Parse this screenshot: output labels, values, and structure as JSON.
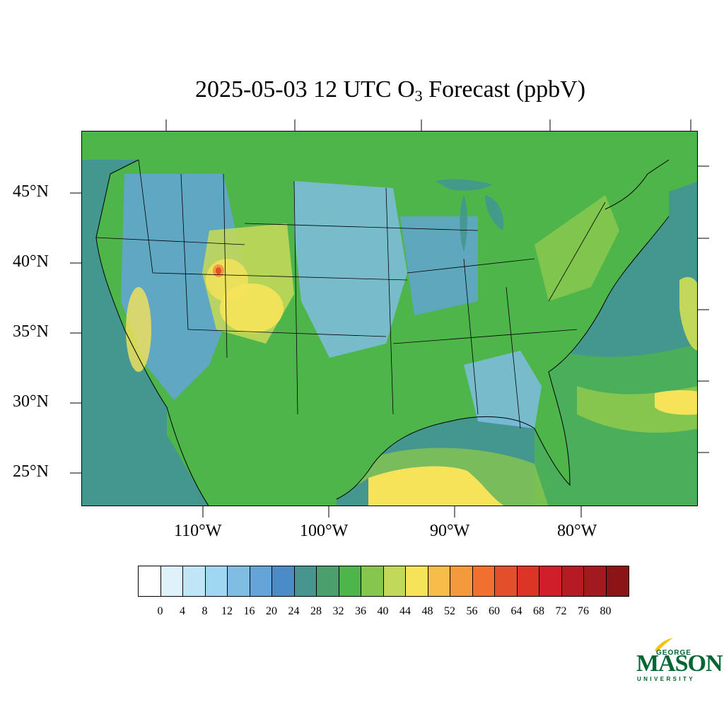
{
  "title": {
    "prefix": "2025-05-03 12 UTC O",
    "subscript": "3",
    "suffix": " Forecast (ppbV)"
  },
  "map": {
    "lat_labels": [
      "45°N",
      "40°N",
      "35°N",
      "30°N",
      "25°N"
    ],
    "lon_labels": [
      "110°W",
      "100°W",
      "90°W",
      "80°W"
    ],
    "land_color": "#4dad47",
    "ocean_color": "#44978f"
  },
  "colorbar": {
    "labels": [
      "0",
      "4",
      "8",
      "12",
      "16",
      "20",
      "24",
      "28",
      "32",
      "36",
      "40",
      "44",
      "48",
      "52",
      "56",
      "60",
      "64",
      "68",
      "72",
      "76",
      "80"
    ],
    "colors": [
      "#ffffff",
      "#dff1fb",
      "#bfe5f7",
      "#9fd7f3",
      "#80bde3",
      "#64a4d8",
      "#4a8cc7",
      "#47958f",
      "#49a06c",
      "#4db54a",
      "#86c64f",
      "#c2d85a",
      "#f6e35a",
      "#f7bd4a",
      "#f59a3c",
      "#f1702f",
      "#e24f2a",
      "#dc3526",
      "#d01f2a",
      "#b61a24",
      "#a01a20",
      "#8c1417"
    ]
  },
  "logo": {
    "top_text": "GEORGE",
    "main_text": "MASON",
    "bottom_text": "UNIVERSITY",
    "color": "#006633",
    "accent": "#f2c300"
  }
}
